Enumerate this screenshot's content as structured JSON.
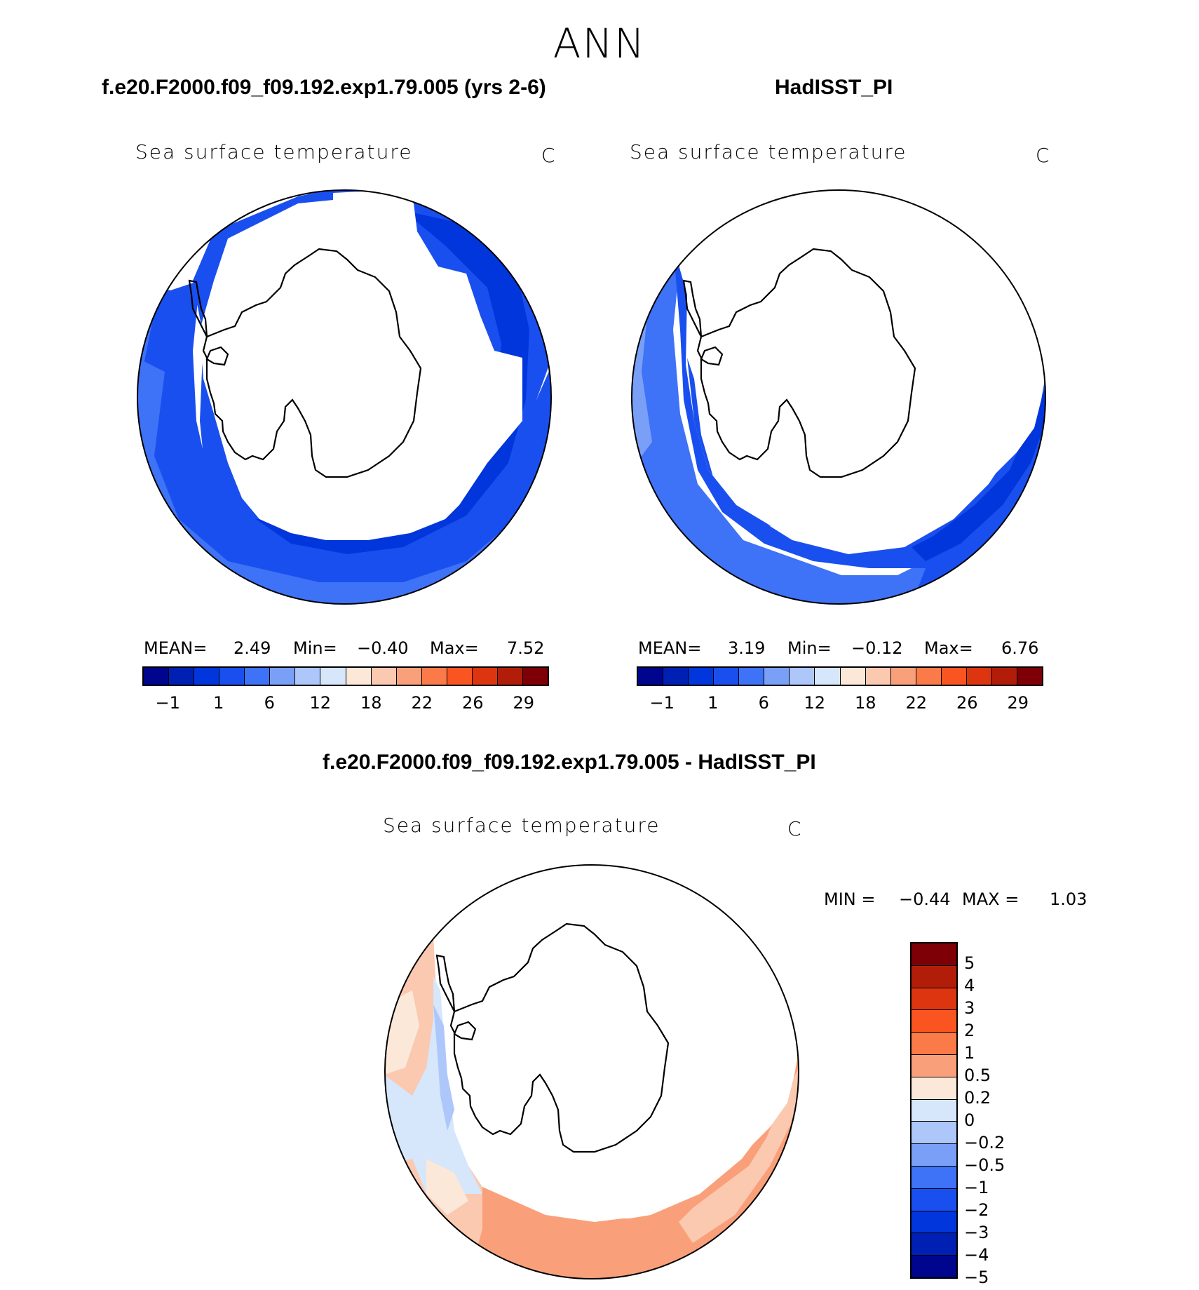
{
  "title": "ANN",
  "panels": [
    {
      "case_title": "f.e20.F2000.f09_f09.192.exp1.79.005 (yrs 2-6)",
      "variable": "Sea surface temperature",
      "units": "C",
      "stats": {
        "mean_label": "MEAN=",
        "mean": "2.49",
        "min_label": "Min=",
        "min": "−0.40",
        "max_label": "Max=",
        "max": "7.52"
      }
    },
    {
      "case_title": "HadISST_PI",
      "variable": "Sea surface temperature",
      "units": "C",
      "stats": {
        "mean_label": "MEAN=",
        "mean": "3.19",
        "min_label": "Min=",
        "min": "−0.12",
        "max_label": "Max=",
        "max": "6.76"
      }
    }
  ],
  "abs_colorbar": {
    "colors": [
      "#00058d",
      "#0020b4",
      "#0036dc",
      "#1a4fef",
      "#3e72f7",
      "#7a9ff7",
      "#aec7fb",
      "#d6e6fb",
      "#fbe8d8",
      "#fbc8b0",
      "#f9a07a",
      "#fa7a48",
      "#fa5520",
      "#dd3510",
      "#b21d0a",
      "#7e0006"
    ],
    "tick_labels": [
      "−1",
      "1",
      "6",
      "12",
      "18",
      "22",
      "26",
      "29"
    ]
  },
  "diff_panel": {
    "case_title": "f.e20.F2000.f09_f09.192.exp1.79.005 - HadISST_PI",
    "variable": "Sea surface temperature",
    "units": "C",
    "stats": {
      "min_label": "MIN =",
      "min": "−0.44",
      "max_label": "MAX =",
      "max": "1.03"
    },
    "colorbar": {
      "colors": [
        "#7e0006",
        "#b21d0a",
        "#dd3510",
        "#fa5520",
        "#fa7a48",
        "#f9a07a",
        "#fbe8d8",
        "#d6e6fb",
        "#aec7fb",
        "#7a9ff7",
        "#3e72f7",
        "#1a4fef",
        "#0036dc",
        "#0020b4",
        "#00058d"
      ],
      "tick_labels": [
        "5",
        "4",
        "3",
        "2",
        "1",
        "0.5",
        "0.2",
        "0",
        "−0.2",
        "−0.5",
        "−1",
        "−2",
        "−3",
        "−4",
        "−5"
      ]
    }
  },
  "map_colors": {
    "sst_deep": "#0036dc",
    "sst_mid": "#1a4fef",
    "sst_light": "#3e72f7",
    "sst_pale": "#7a9ff7",
    "diff_pos_light": "#fbc8b0",
    "diff_pos_mid": "#f9a07a",
    "diff_neg_light": "#d6e6fb",
    "diff_neg_mid": "#aec7fb"
  }
}
